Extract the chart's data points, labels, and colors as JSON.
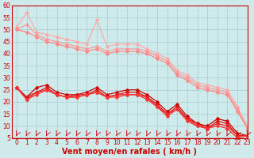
{
  "xlabel": "Vent moyen/en rafales ( km/h )",
  "xlim": [
    -0.5,
    23
  ],
  "ylim": [
    5,
    60
  ],
  "yticks": [
    5,
    10,
    15,
    20,
    25,
    30,
    35,
    40,
    45,
    50,
    55,
    60
  ],
  "xticks": [
    0,
    1,
    2,
    3,
    4,
    5,
    6,
    7,
    8,
    9,
    10,
    11,
    12,
    13,
    14,
    15,
    16,
    17,
    18,
    19,
    20,
    21,
    22,
    23
  ],
  "bg_color": "#ceeaea",
  "grid_color": "#aacccc",
  "lines": [
    {
      "x": [
        0,
        1,
        2,
        3,
        4,
        5,
        6,
        7,
        8,
        9,
        10,
        11,
        12,
        13,
        14,
        15,
        16,
        17,
        18,
        19,
        20,
        21,
        22,
        23
      ],
      "y": [
        51,
        57,
        49,
        48,
        47,
        46,
        45,
        44,
        54,
        43,
        44,
        44,
        44,
        42,
        40,
        38,
        33,
        31,
        28,
        27,
        26,
        25,
        18,
        10
      ],
      "color": "#ffaaaa",
      "lw": 0.9,
      "marker": "D",
      "ms": 2.5
    },
    {
      "x": [
        0,
        1,
        2,
        3,
        4,
        5,
        6,
        7,
        8,
        9,
        10,
        11,
        12,
        13,
        14,
        15,
        16,
        17,
        18,
        19,
        20,
        21,
        22,
        23
      ],
      "y": [
        50,
        52,
        48,
        46,
        45,
        44,
        43,
        42,
        43,
        41,
        42,
        42,
        42,
        41,
        39,
        37,
        32,
        30,
        27,
        26,
        25,
        24,
        17,
        9
      ],
      "color": "#ff9999",
      "lw": 0.9,
      "marker": "D",
      "ms": 2.5
    },
    {
      "x": [
        0,
        1,
        2,
        3,
        4,
        5,
        6,
        7,
        8,
        9,
        10,
        11,
        12,
        13,
        14,
        15,
        16,
        17,
        18,
        19,
        20,
        21,
        22,
        23
      ],
      "y": [
        50,
        49,
        47,
        45,
        44,
        43,
        42,
        41,
        42,
        40,
        41,
        41,
        41,
        40,
        38,
        36,
        31,
        29,
        26,
        25,
        24,
        23,
        16,
        9
      ],
      "color": "#ff8888",
      "lw": 0.9,
      "marker": "D",
      "ms": 2.5
    },
    {
      "x": [
        0,
        1,
        2,
        3,
        4,
        5,
        6,
        7,
        8,
        9,
        10,
        11,
        12,
        13,
        14,
        15,
        16,
        17,
        18,
        19,
        20,
        21,
        22,
        23
      ],
      "y": [
        26,
        22,
        26,
        27,
        24,
        23,
        23,
        24,
        26,
        23,
        24,
        25,
        25,
        23,
        20,
        16,
        19,
        14,
        11,
        10,
        13,
        12,
        7,
        6
      ],
      "color": "#cc0000",
      "lw": 0.9,
      "marker": "D",
      "ms": 2.5
    },
    {
      "x": [
        0,
        1,
        2,
        3,
        4,
        5,
        6,
        7,
        8,
        9,
        10,
        11,
        12,
        13,
        14,
        15,
        16,
        17,
        18,
        19,
        20,
        21,
        22,
        23
      ],
      "y": [
        26,
        22,
        24,
        26,
        23,
        22,
        23,
        23,
        25,
        22,
        23,
        24,
        24,
        22,
        19,
        15,
        18,
        13,
        11,
        9,
        12,
        11,
        6,
        6
      ],
      "color": "#dd1111",
      "lw": 0.9,
      "marker": "D",
      "ms": 2.5
    },
    {
      "x": [
        0,
        1,
        2,
        3,
        4,
        5,
        6,
        7,
        8,
        9,
        10,
        11,
        12,
        13,
        14,
        15,
        16,
        17,
        18,
        19,
        20,
        21,
        22,
        23
      ],
      "y": [
        26,
        21,
        24,
        25,
        23,
        22,
        22,
        23,
        24,
        22,
        23,
        23,
        23,
        22,
        18,
        15,
        17,
        13,
        10,
        9,
        11,
        10,
        6,
        6
      ],
      "color": "#ee2222",
      "lw": 0.9,
      "marker": "D",
      "ms": 2.5
    },
    {
      "x": [
        0,
        1,
        2,
        3,
        4,
        5,
        6,
        7,
        8,
        9,
        10,
        11,
        12,
        13,
        14,
        15,
        16,
        17,
        18,
        19,
        20,
        21,
        22,
        23
      ],
      "y": [
        26,
        21,
        23,
        25,
        23,
        22,
        22,
        23,
        24,
        22,
        22,
        23,
        23,
        21,
        18,
        14,
        17,
        12,
        10,
        9,
        10,
        9,
        5,
        6
      ],
      "color": "#ff3333",
      "lw": 0.9,
      "marker": "D",
      "ms": 2.5
    }
  ],
  "arrow_color": "#cc0000",
  "tick_fontsize": 5.5,
  "xlabel_fontsize": 7
}
